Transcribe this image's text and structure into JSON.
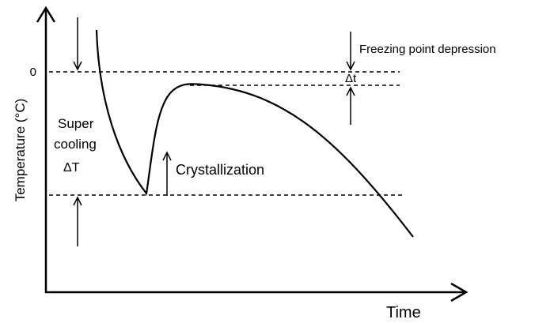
{
  "axes": {
    "y_label": "Temperature (°C)",
    "x_label": "Time",
    "zero_label": "0"
  },
  "annotations": {
    "supercooling_line1": "Super",
    "supercooling_line2": "cooling",
    "supercooling_symbol": "ΔT",
    "crystallization": "Crystallization",
    "freezing_point_depression": "Freezing point depression",
    "depression_symbol": "Δt"
  }
}
